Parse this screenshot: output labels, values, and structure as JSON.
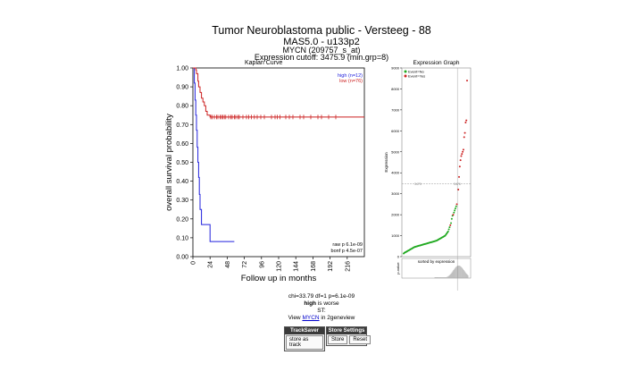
{
  "header": {
    "title": "Tumor Neuroblastoma public - Versteeg - 88",
    "subtitle": "MAS5.0 - u133p2",
    "gene": "MYCN (209757_s_at)",
    "cutoff": "Expression cutoff: 3475.9 (min.grp=8)"
  },
  "chart_data": [
    {
      "type": "line",
      "title": "Kaplan Curve",
      "xlabel": "Follow up in months",
      "ylabel": "overall survival probability",
      "xlim": [
        0,
        240
      ],
      "ylim": [
        0,
        1
      ],
      "xticks": [
        "0",
        "24",
        "48",
        "72",
        "96",
        "120",
        "144",
        "168",
        "192",
        "216"
      ],
      "yticks": [
        "0.00",
        "0.10",
        "0.20",
        "0.30",
        "0.40",
        "0.50",
        "0.60",
        "0.70",
        "0.80",
        "0.90",
        "1.00"
      ],
      "legend": [
        "high (n=12)",
        "low (n=76)"
      ],
      "legend_position": "top-right",
      "series": [
        {
          "name": "high (n=12)",
          "color": "#2222dd",
          "x": [
            0,
            2,
            3,
            4,
            5,
            6,
            7,
            8,
            9,
            10,
            12,
            16,
            24,
            26,
            28,
            32,
            40,
            58
          ],
          "y": [
            1.0,
            0.92,
            0.83,
            0.75,
            0.67,
            0.58,
            0.5,
            0.42,
            0.33,
            0.25,
            0.17,
            0.17,
            0.08,
            0.08,
            0.08,
            0.08,
            0.08,
            0.08
          ]
        },
        {
          "name": "low (n=76)",
          "color": "#cc2222",
          "x": [
            0,
            4,
            5,
            7,
            8,
            10,
            12,
            14,
            16,
            18,
            20,
            24,
            240
          ],
          "y": [
            1.0,
            0.99,
            0.97,
            0.93,
            0.9,
            0.87,
            0.84,
            0.82,
            0.8,
            0.77,
            0.75,
            0.74,
            0.74
          ]
        }
      ],
      "low_censor_months": [
        25,
        27,
        30,
        33,
        35,
        38,
        40,
        42,
        44,
        46,
        50,
        53,
        55,
        58,
        60,
        63,
        65,
        70,
        75,
        78,
        82,
        86,
        90,
        95,
        100,
        110,
        115,
        118,
        122,
        130,
        135,
        140,
        150,
        155,
        165,
        175,
        180,
        190,
        200
      ],
      "annotations": [
        "raw p 6.1e-09",
        "bonf p 4.5e-07"
      ]
    },
    {
      "type": "scatter",
      "title": "Expression Graph",
      "ylabel": "Expression",
      "ylim": [
        0,
        9000
      ],
      "yticks": [
        "0",
        "1000",
        "2000",
        "3000",
        "4000",
        "5000",
        "6000",
        "7000",
        "8000",
        "9000"
      ],
      "legend": [
        "Event=No",
        "Event=Yes"
      ],
      "cutoff": 3475.9,
      "cutoff_label": "3475",
      "cutoff_label_right": "3476",
      "series": [
        {
          "name": "Event=No",
          "color": "#22aa22",
          "x": [
            1,
            2,
            3,
            4,
            5,
            6,
            7,
            8,
            9,
            10,
            11,
            12,
            13,
            14,
            15,
            16,
            17,
            18,
            19,
            20,
            21,
            22,
            23,
            24,
            25,
            26,
            27,
            28,
            29,
            30,
            31,
            32,
            33,
            34,
            35,
            36,
            37,
            38,
            39,
            40,
            41,
            42,
            43,
            44,
            45,
            46,
            47,
            48,
            49,
            50,
            51,
            52,
            53,
            54,
            55,
            56,
            57,
            58,
            59,
            60,
            61,
            62,
            63,
            64,
            66,
            67,
            68,
            70,
            71,
            72,
            73
          ],
          "y": [
            150,
            180,
            200,
            220,
            240,
            260,
            280,
            300,
            320,
            340,
            360,
            380,
            400,
            420,
            440,
            460,
            470,
            480,
            490,
            500,
            510,
            520,
            530,
            540,
            550,
            560,
            570,
            580,
            590,
            600,
            610,
            620,
            630,
            640,
            650,
            660,
            670,
            680,
            690,
            700,
            710,
            720,
            730,
            740,
            750,
            760,
            780,
            800,
            820,
            840,
            860,
            880,
            900,
            920,
            940,
            960,
            980,
            1000,
            1050,
            1100,
            1150,
            1200,
            1300,
            1400,
            1600,
            1800,
            1950,
            2100,
            2200,
            2300,
            2400
          ]
        },
        {
          "name": "Event=Yes",
          "color": "#cc2222",
          "x": [
            65,
            69,
            74,
            76,
            77,
            78,
            79,
            80,
            81,
            82,
            83,
            84,
            85,
            86,
            87,
            88
          ],
          "y": [
            1500,
            2000,
            2500,
            3200,
            3800,
            4300,
            4600,
            4800,
            4900,
            5000,
            5100,
            5700,
            5900,
            6400,
            6500,
            8400
          ]
        }
      ],
      "bottom_label": "sorted by expression",
      "bottom_ylabel": "p-value"
    }
  ],
  "stats": {
    "line1": "chi=33.79 df=1 p=6.1e-09",
    "worse_word": "high",
    "worse_rest": " is worse",
    "st": "ST:",
    "view_pre": "View ",
    "view_link": "MYCN",
    "view_post": " in 2geneview"
  },
  "buttons": {
    "tracksaver_title": "TrackSaver",
    "store_as_track": "store as track",
    "settings_title": "Store Settings",
    "store": "Store",
    "reset": "Reset"
  }
}
